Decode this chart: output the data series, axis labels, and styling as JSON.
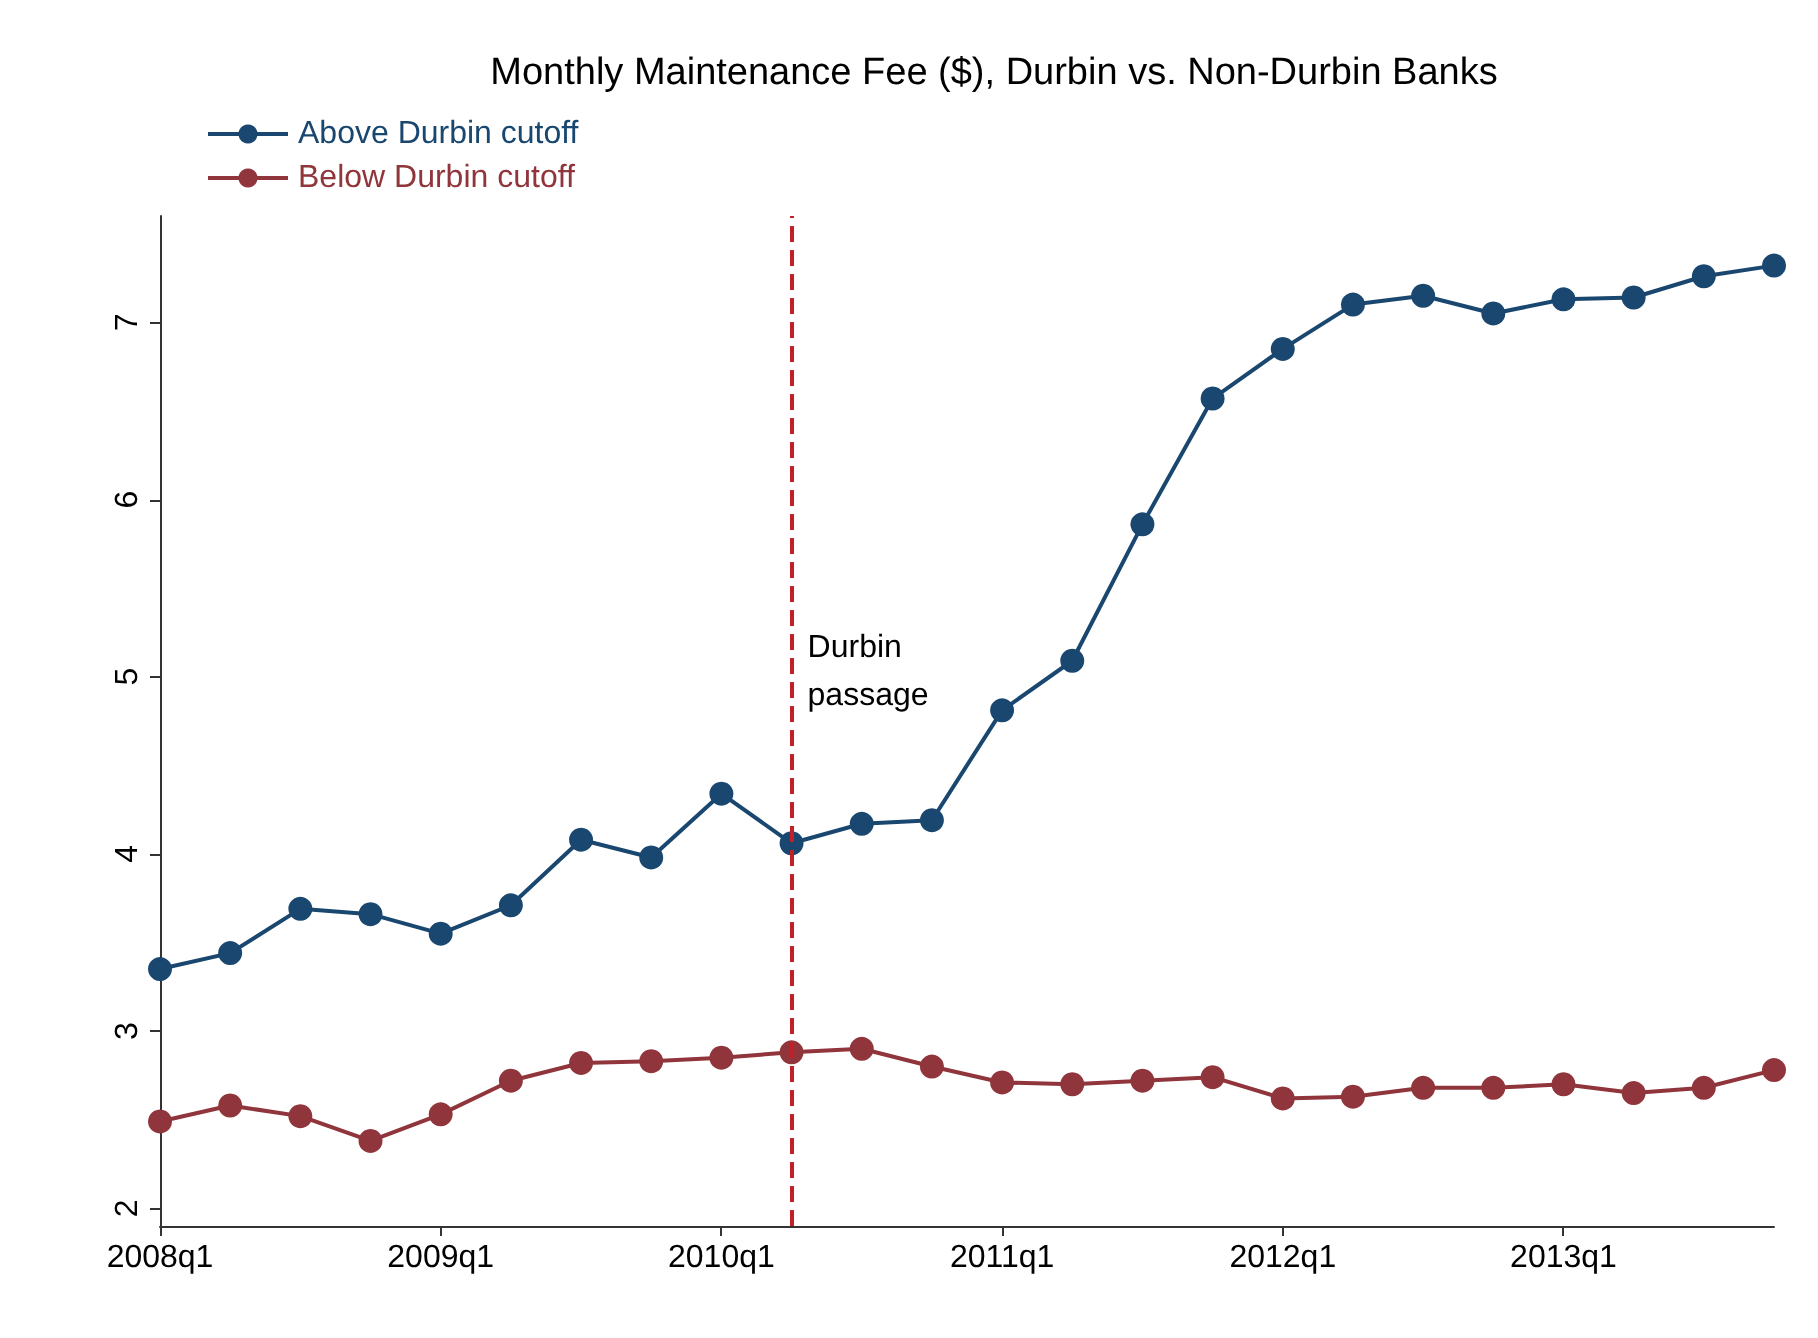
{
  "chart_data": {
    "type": "line",
    "title": "Monthly Maintenance Fee ($), Durbin vs. Non-Durbin Banks",
    "categories": [
      "2008q1",
      null,
      null,
      null,
      "2009q1",
      null,
      null,
      null,
      "2010q1",
      null,
      null,
      null,
      "2011q1",
      null,
      null,
      null,
      "2012q1",
      null,
      null,
      null,
      "2013q1",
      null,
      null,
      null
    ],
    "series": [
      {
        "name": "Above Durbin cutoff",
        "color": "#1a476f",
        "values": [
          3.35,
          3.44,
          3.69,
          3.66,
          3.55,
          3.71,
          4.08,
          3.98,
          4.34,
          4.06,
          4.17,
          4.19,
          4.81,
          5.09,
          5.86,
          6.57,
          6.85,
          7.1,
          7.15,
          7.05,
          7.13,
          7.14,
          7.26,
          7.32
        ]
      },
      {
        "name": "Below Durbin cutoff",
        "color": "#90353b",
        "values": [
          2.49,
          2.58,
          2.52,
          2.38,
          2.53,
          2.72,
          2.82,
          2.83,
          2.85,
          2.88,
          2.9,
          2.8,
          2.71,
          2.7,
          2.72,
          2.74,
          2.62,
          2.63,
          2.68,
          2.68,
          2.7,
          2.65,
          2.68,
          2.78
        ]
      }
    ],
    "ylim": [
      1.9,
      7.6
    ],
    "yticks": [
      2,
      3,
      4,
      5,
      6,
      7
    ],
    "annotations": [
      "Durbin\npassage"
    ],
    "grid": false,
    "legend": "top left",
    "marker": "circle",
    "line_style": "solid"
  }
}
